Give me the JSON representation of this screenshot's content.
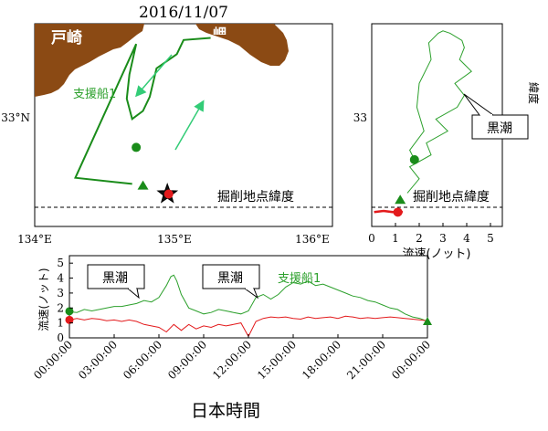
{
  "chart_data": [
    {
      "type": "map",
      "title": "2016/11/07",
      "place_labels": [
        "戸崎",
        "岬"
      ],
      "xticks": [
        "134°E",
        "135°E",
        "136°E"
      ],
      "yticks": [
        "33°N"
      ],
      "xlim": [
        134.0,
        136.2
      ],
      "ylim": [
        32.5,
        33.5
      ],
      "series": [
        {
          "name": "支援船1",
          "color": "#1a8c1a",
          "lon": [
            135.3,
            135.1,
            135.05,
            134.9,
            134.85,
            134.8,
            134.72,
            134.68,
            134.7,
            134.75,
            134.3,
            134.72
          ],
          "lat": [
            33.43,
            33.42,
            33.35,
            33.28,
            33.14,
            33.07,
            33.03,
            33.13,
            33.25,
            33.4,
            32.74,
            32.71
          ]
        }
      ],
      "start_marker": {
        "lon": 134.75,
        "lat": 32.89,
        "color": "#1a8c1a"
      },
      "end_marker": {
        "lon": 134.8,
        "lat": 32.7,
        "color": "#1a8c1a"
      },
      "star": {
        "lon": 134.98,
        "lat": 32.66
      },
      "red_marker": {
        "lon": 134.99,
        "lat": 32.66
      },
      "reference_line": {
        "lat": 32.66,
        "label": "掘削地点緯度"
      },
      "arrow_color": "#33cc77"
    },
    {
      "type": "line",
      "xlabel": "流速(ノット)",
      "ylabel": "緯度",
      "xticks": [
        "0",
        "1",
        "2",
        "3",
        "4",
        "5"
      ],
      "yticks": [
        "33"
      ],
      "xlim": [
        0,
        5.5
      ],
      "ylim": [
        32.6,
        33.45
      ],
      "annotation": "黒潮",
      "reference_line": {
        "lat": 32.66,
        "label": "掘削地点緯度"
      },
      "series": [
        {
          "name": "支援船1",
          "color": "#2ca02c",
          "speed": [
            1.5,
            2.0,
            1.6,
            2.5,
            2.3,
            3.2,
            2.7,
            3.6,
            3.9,
            3.5,
            4.2,
            3.7,
            3.9,
            3.8,
            3.3,
            3.0,
            2.8,
            2.4,
            2.5,
            2.0,
            1.9,
            2.2,
            1.6,
            1.8
          ],
          "lat": [
            32.74,
            32.8,
            32.85,
            32.9,
            32.95,
            33.0,
            33.05,
            33.1,
            33.15,
            33.2,
            33.25,
            33.3,
            33.35,
            33.38,
            33.41,
            33.42,
            33.41,
            33.37,
            33.3,
            33.2,
            33.1,
            33.0,
            32.92,
            32.88
          ]
        },
        {
          "name": "",
          "color": "#e31a1c",
          "speed": [
            0.1,
            0.5,
            0.9,
            1.1,
            1.3,
            1.0
          ],
          "lat": [
            32.66,
            32.665,
            32.66,
            32.665,
            32.66,
            32.66
          ]
        }
      ],
      "start_marker": {
        "speed": 1.8,
        "lat": 32.88
      },
      "end_marker": {
        "speed": 1.2,
        "lat": 32.71
      },
      "red_marker": {
        "speed": 1.1,
        "lat": 32.66
      }
    },
    {
      "type": "line",
      "xlabel": "日本時間",
      "ylabel": "流速(ノット)",
      "xticks": [
        "00:00:00",
        "03:00:00",
        "06:00:00",
        "09:00:00",
        "12:00:00",
        "15:00:00",
        "18:00:00",
        "21:00:00",
        "00:00:00"
      ],
      "yticks": [
        "0",
        "1",
        "2",
        "3",
        "4",
        "5"
      ],
      "xlim": [
        0,
        24
      ],
      "ylim": [
        0,
        5.5
      ],
      "annotations": [
        "黒潮",
        "黒潮"
      ],
      "series": [
        {
          "name": "支援船1",
          "color": "#2ca02c",
          "x": [
            0,
            0.5,
            1,
            1.5,
            2,
            2.5,
            3,
            3.5,
            4,
            4.5,
            5,
            5.5,
            6,
            6.5,
            6.8,
            7,
            7.2,
            7.5,
            8,
            8.5,
            9,
            9.5,
            10,
            10.5,
            11,
            11.5,
            12,
            12.5,
            13,
            13.5,
            14,
            14.5,
            15,
            15.5,
            16,
            16.5,
            17,
            17.5,
            18,
            18.5,
            19,
            19.5,
            20,
            20.5,
            21,
            21.5,
            22,
            22.5,
            23,
            23.5,
            24
          ],
          "y": [
            1.75,
            1.7,
            1.9,
            1.8,
            1.9,
            2.0,
            2.1,
            2.1,
            2.2,
            2.3,
            2.5,
            2.4,
            2.7,
            3.5,
            4.1,
            4.2,
            3.8,
            2.9,
            2.0,
            1.8,
            1.6,
            1.7,
            1.9,
            1.8,
            1.7,
            1.6,
            1.8,
            2.7,
            2.9,
            2.6,
            2.9,
            3.4,
            3.7,
            3.6,
            3.8,
            3.5,
            3.6,
            3.4,
            3.2,
            3.0,
            2.8,
            2.7,
            2.5,
            2.4,
            2.2,
            2.0,
            1.9,
            1.6,
            1.4,
            1.3,
            1.1
          ]
        },
        {
          "name": "",
          "color": "#e31a1c",
          "x": [
            0,
            0.5,
            1,
            1.5,
            2,
            2.5,
            3,
            3.5,
            4,
            4.5,
            5,
            5.5,
            6,
            6.5,
            7,
            7.5,
            8,
            8.5,
            9,
            9.5,
            10,
            10.5,
            11,
            11.5,
            12,
            12.5,
            13,
            13.5,
            14,
            14.5,
            15,
            15.5,
            16,
            16.5,
            17,
            17.5,
            18,
            18.5,
            19,
            19.5,
            20,
            20.5,
            21,
            21.5,
            22,
            22.5,
            23,
            23.5,
            24
          ],
          "y": [
            1.2,
            1.3,
            1.2,
            1.3,
            1.25,
            1.15,
            1.2,
            1.1,
            1.2,
            1.1,
            0.9,
            0.8,
            0.7,
            0.4,
            0.9,
            0.5,
            0.9,
            0.6,
            0.8,
            0.7,
            0.9,
            0.8,
            0.9,
            1.0,
            0.1,
            1.1,
            1.3,
            1.4,
            1.35,
            1.4,
            1.3,
            1.25,
            1.4,
            1.3,
            1.35,
            1.4,
            1.3,
            1.45,
            1.4,
            1.3,
            1.35,
            1.3,
            1.35,
            1.4,
            1.35,
            1.3,
            1.25,
            1.2,
            1.15
          ]
        }
      ],
      "start_marker": {
        "x": 0,
        "y": 1.78
      },
      "end_marker": {
        "x": 24,
        "y": 1.1
      },
      "red_start_marker": {
        "x": 0,
        "y": 1.2
      },
      "legend_text": "支援船1"
    }
  ]
}
